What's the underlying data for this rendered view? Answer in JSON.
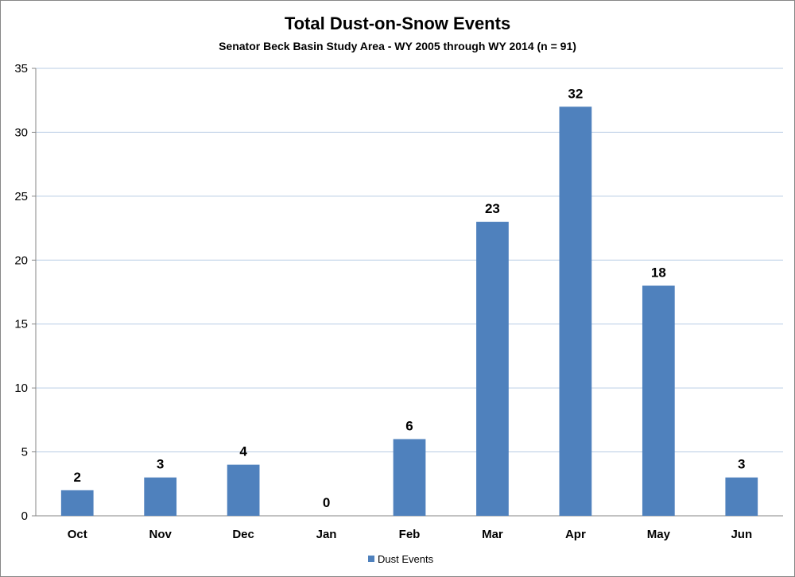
{
  "chart_data": {
    "type": "bar",
    "title": "Total Dust-on-Snow Events",
    "subtitle": "Senator Beck Basin Study Area - WY 2005 through WY 2014 (n = 91)",
    "categories": [
      "Oct",
      "Nov",
      "Dec",
      "Jan",
      "Feb",
      "Mar",
      "Apr",
      "May",
      "Jun"
    ],
    "series": [
      {
        "name": "Dust Events",
        "values": [
          2,
          3,
          4,
          0,
          6,
          23,
          32,
          18,
          3
        ]
      }
    ],
    "ylim": [
      0,
      35
    ],
    "yticks": [
      0,
      5,
      10,
      15,
      20,
      25,
      30,
      35
    ],
    "grid": true,
    "legend_position": "bottom",
    "colors": {
      "bar": "#4f81bd",
      "grid": "#b9cde5",
      "axis": "#868686"
    }
  }
}
